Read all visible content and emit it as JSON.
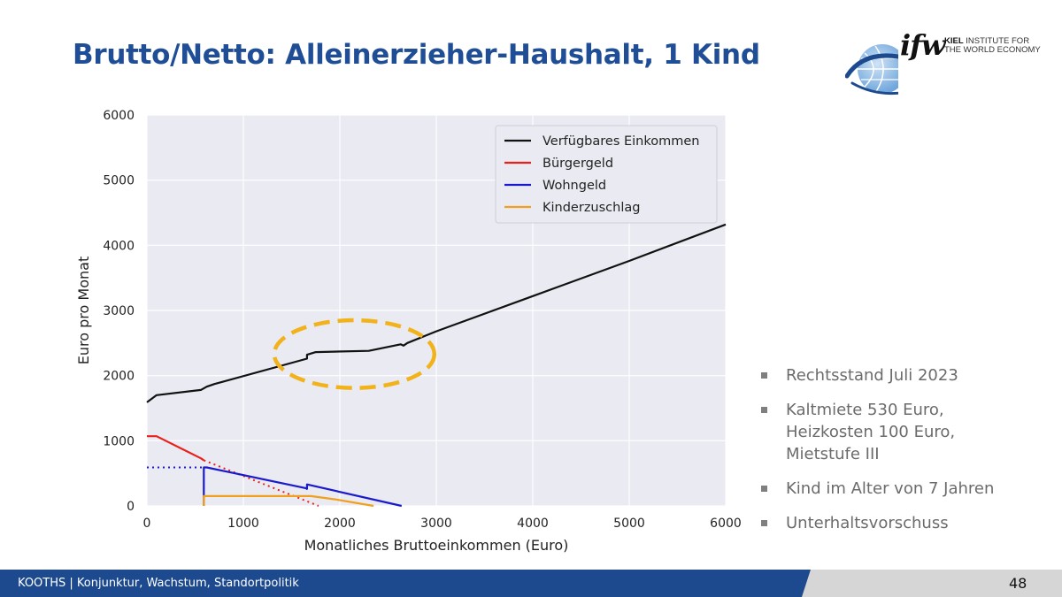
{
  "slide": {
    "title": "Brutto/Netto: Alleinerzieher-Haushalt, 1 Kind",
    "page_number": "48",
    "footer": "KOOTHS | Konjunktur, Wachstum, Standortpolitik"
  },
  "logo": {
    "mark": "ifw",
    "name_bold": "KIEL",
    "name_rest": " INSTITUTE FOR",
    "name_line2": "THE WORLD ECONOMY",
    "icon": "globe-icon"
  },
  "bullets": [
    "Rechtsstand Juli 2023",
    "Kaltmiete 530 Euro,\nHeizkosten 100 Euro,\nMietstufe III",
    "Kind im Alter von 7 Jahren",
    "Unterhaltsvorschuss"
  ],
  "colors": {
    "title": "#1f4e96",
    "footer_bar": "#1d4a8e",
    "plot_background": "#eaeaf2",
    "highlight": "#f2b21b"
  },
  "chart_data": {
    "type": "line",
    "title": "",
    "xlabel": "Monatliches Bruttoeinkommen (Euro)",
    "ylabel": "Euro pro Monat",
    "xlim": [
      0,
      6000
    ],
    "ylim": [
      0,
      6000
    ],
    "xticks": [
      0,
      1000,
      2000,
      3000,
      4000,
      5000,
      6000
    ],
    "yticks": [
      0,
      1000,
      2000,
      3000,
      4000,
      5000,
      6000
    ],
    "grid": true,
    "legend_position": "top-right",
    "series": [
      {
        "name": "Verfügbares Einkommen",
        "color": "#111111",
        "style": "solid",
        "x": [
          0,
          100,
          560,
          620,
          700,
          1660,
          1660,
          1750,
          2300,
          2630,
          2660,
          2700,
          3000,
          4000,
          5000,
          6000
        ],
        "y": [
          1590,
          1700,
          1780,
          1830,
          1870,
          2260,
          2320,
          2360,
          2380,
          2480,
          2460,
          2500,
          2680,
          3220,
          3760,
          4320
        ]
      },
      {
        "name": "Bürgergeld",
        "color": "#e8221b",
        "style": "solid",
        "x": [
          0,
          100,
          560,
          590
        ],
        "y": [
          1070,
          1070,
          730,
          700
        ]
      },
      {
        "name": "",
        "color": "#e8221b",
        "style": "dotted",
        "x": [
          590,
          1780
        ],
        "y": [
          700,
          0
        ]
      },
      {
        "name": "Wohngeld",
        "color": "#1a1acc",
        "style": "solid",
        "x": [
          590,
          590,
          620,
          1650,
          1660,
          1660,
          2640
        ],
        "y": [
          0,
          590,
          590,
          270,
          260,
          330,
          0
        ]
      },
      {
        "name": "",
        "color": "#1a1acc",
        "style": "dotted",
        "x": [
          0,
          590
        ],
        "y": [
          590,
          590
        ]
      },
      {
        "name": "Kinderzuschlag",
        "color": "#f0a01e",
        "style": "solid",
        "x": [
          590,
          590,
          620,
          1700,
          1950,
          2350
        ],
        "y": [
          0,
          150,
          150,
          150,
          100,
          0
        ]
      }
    ],
    "annotations": [
      {
        "type": "ellipse",
        "style": "dashed",
        "color": "#f2b21b",
        "center_x": 2150,
        "center_y": 2330,
        "radius_x": 830,
        "radius_y": 520
      }
    ]
  }
}
